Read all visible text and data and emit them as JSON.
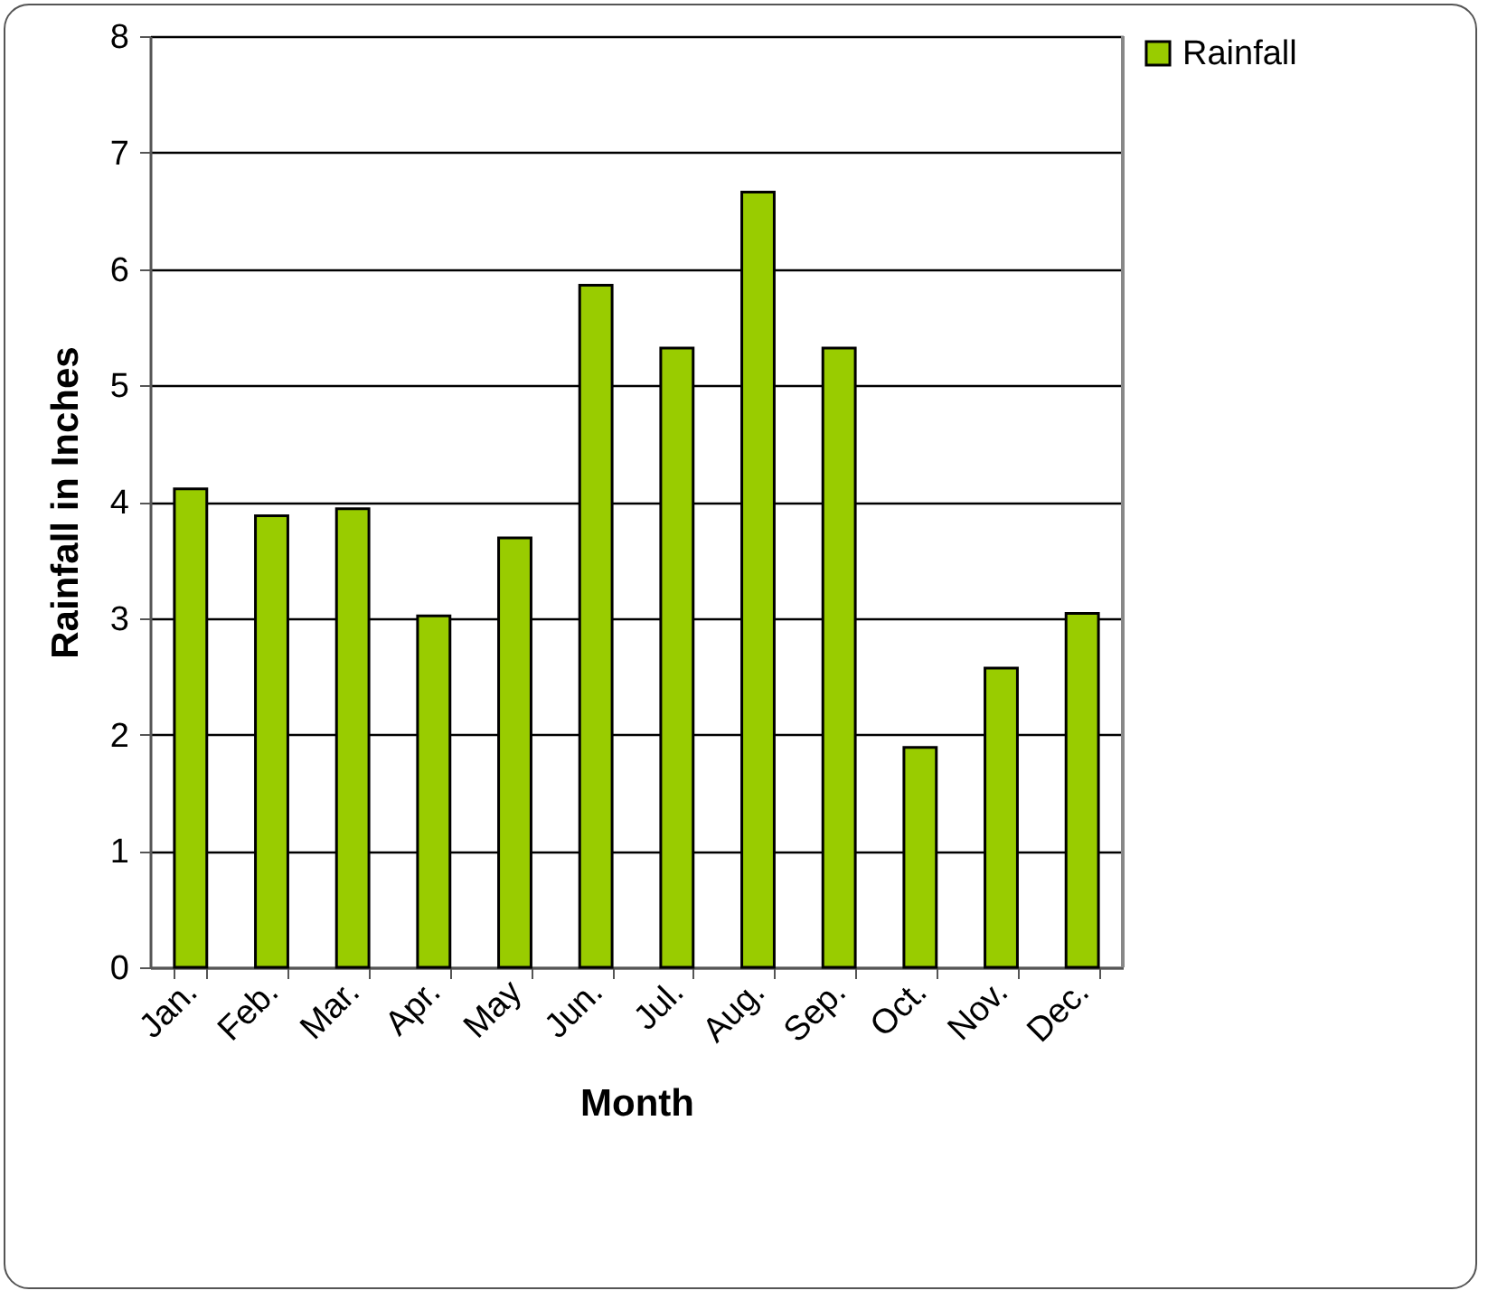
{
  "chart_data": {
    "type": "bar",
    "xlabel": "Month",
    "ylabel": "Rainfall in Inches",
    "categories": [
      "Jan.",
      "Feb.",
      "Mar.",
      "Apr.",
      "May",
      "Jun.",
      "Jul.",
      "Aug.",
      "Sep.",
      "Oct.",
      "Nov.",
      "Dec."
    ],
    "series": [
      {
        "name": "Rainfall",
        "color": "#99cc00",
        "values": [
          4.11,
          3.88,
          3.94,
          3.02,
          3.69,
          5.86,
          5.32,
          6.66,
          5.32,
          1.89,
          2.57,
          3.04
        ]
      }
    ],
    "ylim": [
      0,
      8
    ],
    "yticks": [
      0,
      1,
      2,
      3,
      4,
      5,
      6,
      7,
      8
    ],
    "grid": "y",
    "legend": "right"
  }
}
